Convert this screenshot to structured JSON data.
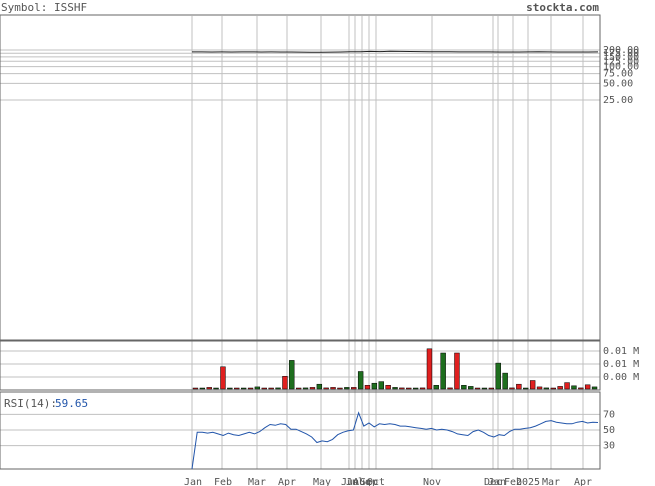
{
  "header": {
    "symbol_text": "Symbol: ISSHF",
    "site": "stockta.com"
  },
  "colors": {
    "up": "#1e6e1e",
    "down": "#e02020",
    "rsi": "#2255aa",
    "grid": "#c0c0c0",
    "frame": "#666666"
  },
  "chart_data": [
    {
      "type": "line",
      "name": "price",
      "y_scale": "log",
      "y_ticks": [
        200,
        175,
        150,
        125,
        100,
        75,
        50,
        25
      ],
      "y_tick_labels": [
        "200.00",
        "175.00",
        "150.00",
        "125.00",
        "100.00",
        "75.00",
        "50.00",
        "25.00"
      ],
      "x_month_labels": [
        "Jan",
        "Feb",
        "Mar",
        "Apr",
        "May",
        "Jun",
        "Jul",
        "Aug",
        "Sep",
        "Oct",
        "Nov",
        "Dec",
        "Jan",
        "Feb",
        "2025",
        "Mar",
        "Apr"
      ],
      "values": [
        185,
        185,
        184,
        185,
        184,
        185,
        185,
        184,
        185,
        184,
        184,
        183,
        182,
        182,
        183,
        184,
        186,
        186,
        189,
        187,
        190,
        189,
        188,
        187,
        186,
        186,
        186,
        185,
        185,
        185,
        185,
        184,
        184,
        184,
        185,
        186,
        185,
        184,
        184,
        184,
        184,
        185
      ]
    },
    {
      "type": "bar",
      "name": "volume",
      "y_tick_labels": [
        "0.01 M",
        "0.01 M",
        "0.00 M"
      ],
      "values": [
        0.0001,
        0.0001,
        0.0003,
        0.0001,
        0.0042,
        0.0001,
        0.0001,
        0.0001,
        0.0001,
        0.0004,
        0.0001,
        0.0001,
        0.0002,
        0.0024,
        0.0054,
        0.0001,
        0.0002,
        0.0003,
        0.0009,
        0.0002,
        0.0003,
        0.0001,
        0.0003,
        0.0003,
        0.0033,
        0.0007,
        0.0011,
        0.0014,
        0.0007,
        0.0003,
        0.0002,
        0.0001,
        0.0001,
        0.0002,
        0.0076,
        0.0007,
        0.0068,
        0.0002,
        0.0068,
        0.0007,
        0.0005,
        0.0001,
        0.0001,
        0.0001,
        0.0049,
        0.003,
        0.0002,
        0.0009,
        0.0001,
        0.0016,
        0.0004,
        0.0002,
        0.0001,
        0.0005,
        0.0012,
        0.0006,
        0.0002,
        0.0008,
        0.0004
      ],
      "up": [
        false,
        true,
        false,
        true,
        false,
        true,
        false,
        true,
        false,
        true,
        false,
        false,
        true,
        false,
        true,
        false,
        true,
        false,
        true,
        false,
        false,
        false,
        true,
        false,
        true,
        false,
        true,
        true,
        false,
        true,
        false,
        false,
        true,
        false,
        false,
        true,
        true,
        false,
        false,
        true,
        true,
        false,
        true,
        false,
        true,
        true,
        false,
        false,
        true,
        false,
        false,
        true,
        false,
        false,
        false,
        true,
        false,
        false,
        true
      ]
    },
    {
      "type": "line",
      "name": "RSI",
      "label": "RSI(14):",
      "current": "59.65",
      "y_range": [
        0,
        100
      ],
      "y_ticks": [
        70,
        50,
        30
      ],
      "values": [
        0,
        47,
        47,
        46,
        47,
        45,
        43,
        46,
        44,
        43,
        45,
        47,
        45,
        48,
        53,
        57,
        56,
        58,
        57,
        51,
        51,
        48,
        45,
        41,
        34,
        36,
        35,
        38,
        44,
        47,
        49,
        50,
        72,
        55,
        59,
        54,
        58,
        57,
        58,
        57,
        55,
        55,
        54,
        53,
        52,
        51,
        52,
        50,
        51,
        50,
        48,
        45,
        44,
        43,
        48,
        50,
        47,
        43,
        41,
        44,
        43,
        48,
        51,
        51,
        52,
        53,
        55,
        58,
        61,
        62,
        60,
        59,
        58,
        58,
        60,
        61,
        59,
        60,
        59.65
      ]
    }
  ]
}
